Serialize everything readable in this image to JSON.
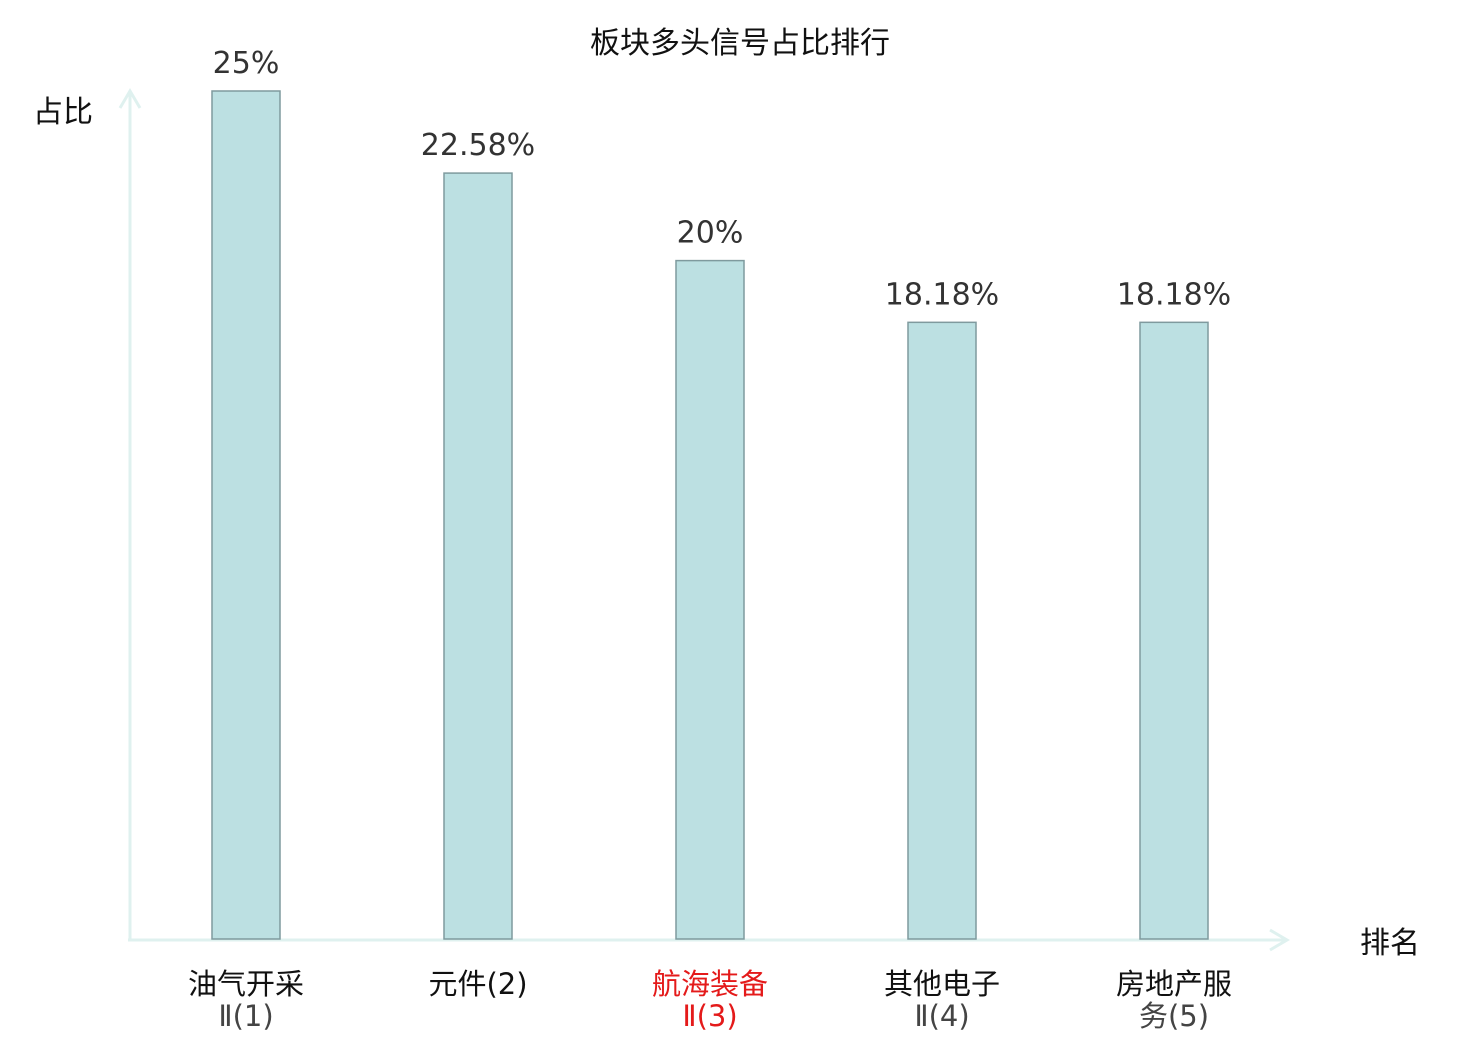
{
  "chart_data": {
    "type": "bar",
    "title": "板块多头信号占比排行",
    "ylabel": "占比",
    "xlabel": "排名",
    "ylim": [
      0,
      25
    ],
    "grid": false,
    "categories": [
      {
        "lines": [
          "油气开采",
          "Ⅱ(1)"
        ],
        "highlight": false
      },
      {
        "lines": [
          "元件(2)"
        ],
        "highlight": false
      },
      {
        "lines": [
          "航海装备",
          "Ⅱ(3)"
        ],
        "highlight": true
      },
      {
        "lines": [
          "其他电子",
          "Ⅱ(4)"
        ],
        "highlight": false
      },
      {
        "lines": [
          "房地产服",
          "务(5)"
        ],
        "highlight": false
      }
    ],
    "values": [
      25,
      22.58,
      20,
      18.18,
      18.18
    ],
    "value_labels": [
      "25%",
      "22.58%",
      "20%",
      "18.18%",
      "18.18%"
    ],
    "colors": {
      "bar_fill": "#bce0e2",
      "bar_stroke": "#7f9a9e",
      "axis": "#dff1ef",
      "highlight_text": "#e41a1a"
    }
  }
}
